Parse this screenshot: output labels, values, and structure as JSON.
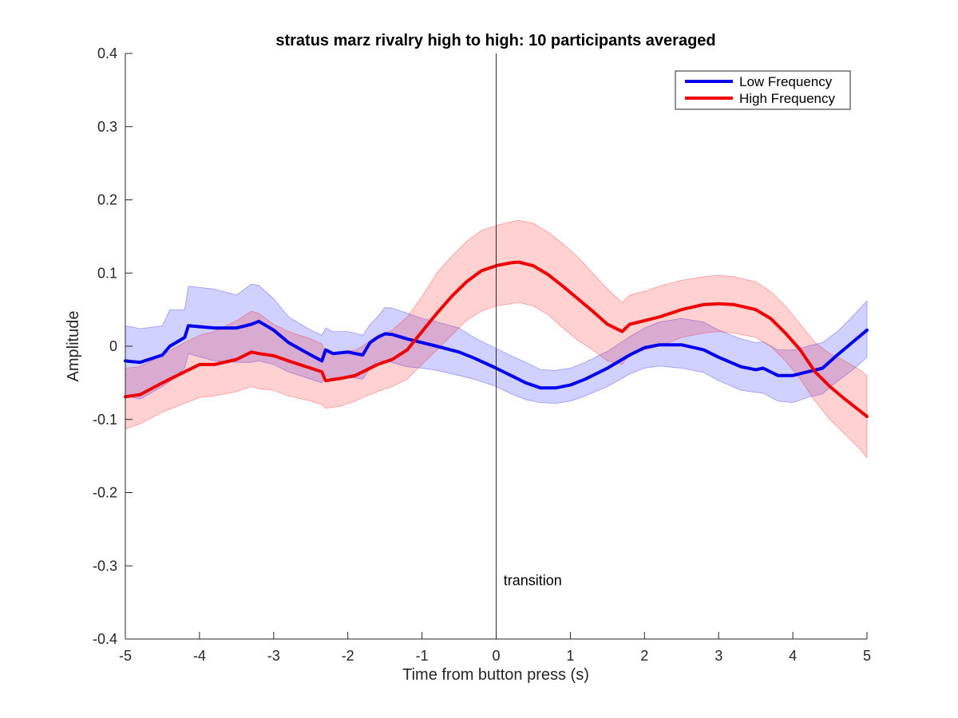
{
  "chart_data": {
    "type": "line",
    "title": "stratus marz rivalry high to high: 10 participants averaged",
    "xlabel": "Time from button press (s)",
    "ylabel": "Amplitude",
    "xlim": [
      -5,
      5
    ],
    "ylim": [
      -0.4,
      0.4
    ],
    "xticks": [
      -5,
      -4,
      -3,
      -2,
      -1,
      0,
      1,
      2,
      3,
      4,
      5
    ],
    "yticks": [
      -0.4,
      -0.3,
      -0.2,
      -0.1,
      0,
      0.1,
      0.2,
      0.3,
      0.4
    ],
    "xtick_labels": [
      "-5",
      "-4",
      "-3",
      "-2",
      "-1",
      "0",
      "1",
      "2",
      "3",
      "4",
      "5"
    ],
    "ytick_labels": [
      "-0.4",
      "-0.3",
      "-0.2",
      "-0.1",
      "0",
      "0.1",
      "0.2",
      "0.3",
      "0.4"
    ],
    "legend_position": "top-right",
    "grid": false,
    "annotations": [
      {
        "text": "transition",
        "x": 0.1,
        "y": -0.32,
        "vline_x": 0
      }
    ],
    "series": [
      {
        "name": "Low Frequency",
        "color": "#0000ee",
        "band_color": "#0000ff",
        "x": [
          -5,
          -4.8,
          -4.5,
          -4.4,
          -4.2,
          -4.15,
          -3.8,
          -3.5,
          -3.3,
          -3.2,
          -3.0,
          -2.8,
          -2.5,
          -2.35,
          -2.3,
          -2.2,
          -2.0,
          -1.8,
          -1.7,
          -1.6,
          -1.5,
          -1.4,
          -1.2,
          -1.0,
          -0.8,
          -0.5,
          -0.3,
          0,
          0.2,
          0.4,
          0.6,
          0.8,
          1.0,
          1.2,
          1.5,
          1.8,
          2.0,
          2.2,
          2.5,
          2.8,
          3.0,
          3.3,
          3.5,
          3.6,
          3.8,
          4.0,
          4.2,
          4.4,
          4.6,
          4.8,
          5
        ],
        "y": [
          -0.02,
          -0.022,
          -0.012,
          0.0,
          0.012,
          0.028,
          0.025,
          0.025,
          0.03,
          0.034,
          0.022,
          0.005,
          -0.012,
          -0.02,
          -0.005,
          -0.01,
          -0.008,
          -0.012,
          0.005,
          0.012,
          0.017,
          0.016,
          0.01,
          0.005,
          0.0,
          -0.008,
          -0.016,
          -0.03,
          -0.04,
          -0.05,
          -0.057,
          -0.057,
          -0.053,
          -0.045,
          -0.03,
          -0.012,
          -0.002,
          0.002,
          0.002,
          -0.005,
          -0.015,
          -0.028,
          -0.032,
          -0.03,
          -0.04,
          -0.04,
          -0.035,
          -0.03,
          -0.012,
          0.005,
          0.022
        ],
        "upper": [
          0.028,
          0.024,
          0.028,
          0.05,
          0.05,
          0.082,
          0.078,
          0.07,
          0.085,
          0.083,
          0.065,
          0.04,
          0.022,
          0.015,
          0.025,
          0.02,
          0.02,
          0.015,
          0.03,
          0.04,
          0.053,
          0.052,
          0.045,
          0.038,
          0.033,
          0.025,
          0.012,
          -0.003,
          -0.013,
          -0.022,
          -0.032,
          -0.033,
          -0.03,
          -0.022,
          -0.007,
          0.013,
          0.025,
          0.033,
          0.038,
          0.033,
          0.022,
          0.01,
          0.005,
          0.006,
          -0.005,
          -0.005,
          0.0,
          0.005,
          0.02,
          0.04,
          0.062
        ],
        "lower": [
          -0.068,
          -0.072,
          -0.055,
          -0.048,
          -0.03,
          -0.01,
          -0.02,
          -0.022,
          -0.022,
          -0.02,
          -0.025,
          -0.035,
          -0.045,
          -0.05,
          -0.04,
          -0.044,
          -0.042,
          -0.045,
          -0.03,
          -0.02,
          -0.02,
          -0.022,
          -0.028,
          -0.03,
          -0.033,
          -0.04,
          -0.045,
          -0.055,
          -0.065,
          -0.073,
          -0.077,
          -0.078,
          -0.075,
          -0.068,
          -0.055,
          -0.038,
          -0.03,
          -0.027,
          -0.03,
          -0.036,
          -0.047,
          -0.06,
          -0.063,
          -0.064,
          -0.075,
          -0.077,
          -0.07,
          -0.065,
          -0.048,
          -0.033,
          -0.015
        ]
      },
      {
        "name": "High Frequency",
        "color": "#ee0000",
        "band_color": "#ff0000",
        "x": [
          -5,
          -4.8,
          -4.5,
          -4.2,
          -4.0,
          -3.8,
          -3.5,
          -3.3,
          -3.2,
          -3.0,
          -2.8,
          -2.5,
          -2.35,
          -2.3,
          -2.1,
          -1.9,
          -1.8,
          -1.6,
          -1.4,
          -1.2,
          -1.0,
          -0.8,
          -0.6,
          -0.4,
          -0.2,
          0,
          0.2,
          0.3,
          0.5,
          0.7,
          0.9,
          1.1,
          1.3,
          1.5,
          1.7,
          1.8,
          2.0,
          2.2,
          2.5,
          2.8,
          3.0,
          3.2,
          3.5,
          3.7,
          3.9,
          4.1,
          4.3,
          4.5,
          4.7,
          4.9,
          5
        ],
        "y": [
          -0.069,
          -0.066,
          -0.05,
          -0.035,
          -0.025,
          -0.025,
          -0.018,
          -0.008,
          -0.01,
          -0.013,
          -0.02,
          -0.03,
          -0.035,
          -0.047,
          -0.044,
          -0.04,
          -0.035,
          -0.025,
          -0.018,
          -0.005,
          0.02,
          0.045,
          0.068,
          0.088,
          0.103,
          0.11,
          0.114,
          0.115,
          0.11,
          0.098,
          0.082,
          0.065,
          0.048,
          0.03,
          0.02,
          0.03,
          0.035,
          0.04,
          0.05,
          0.057,
          0.058,
          0.057,
          0.05,
          0.038,
          0.018,
          -0.005,
          -0.035,
          -0.055,
          -0.072,
          -0.088,
          -0.096
        ],
        "upper": [
          -0.03,
          -0.028,
          -0.012,
          0.005,
          0.015,
          0.02,
          0.035,
          0.048,
          0.045,
          0.03,
          0.02,
          0.01,
          0.003,
          -0.01,
          -0.008,
          -0.005,
          0.0,
          0.015,
          0.022,
          0.04,
          0.068,
          0.1,
          0.123,
          0.143,
          0.158,
          0.165,
          0.17,
          0.172,
          0.168,
          0.156,
          0.14,
          0.122,
          0.1,
          0.078,
          0.06,
          0.07,
          0.075,
          0.082,
          0.09,
          0.095,
          0.097,
          0.095,
          0.088,
          0.075,
          0.055,
          0.03,
          0.005,
          -0.01,
          -0.02,
          -0.032,
          -0.04
        ],
        "lower": [
          -0.113,
          -0.106,
          -0.09,
          -0.078,
          -0.07,
          -0.068,
          -0.062,
          -0.055,
          -0.058,
          -0.06,
          -0.068,
          -0.075,
          -0.08,
          -0.085,
          -0.082,
          -0.075,
          -0.07,
          -0.062,
          -0.055,
          -0.045,
          -0.025,
          -0.005,
          0.015,
          0.035,
          0.048,
          0.055,
          0.058,
          0.06,
          0.055,
          0.043,
          0.025,
          0.008,
          -0.005,
          -0.02,
          -0.025,
          -0.01,
          -0.005,
          0.0,
          0.012,
          0.018,
          0.02,
          0.018,
          0.012,
          0.0,
          -0.02,
          -0.045,
          -0.075,
          -0.1,
          -0.12,
          -0.14,
          -0.152
        ]
      }
    ]
  }
}
